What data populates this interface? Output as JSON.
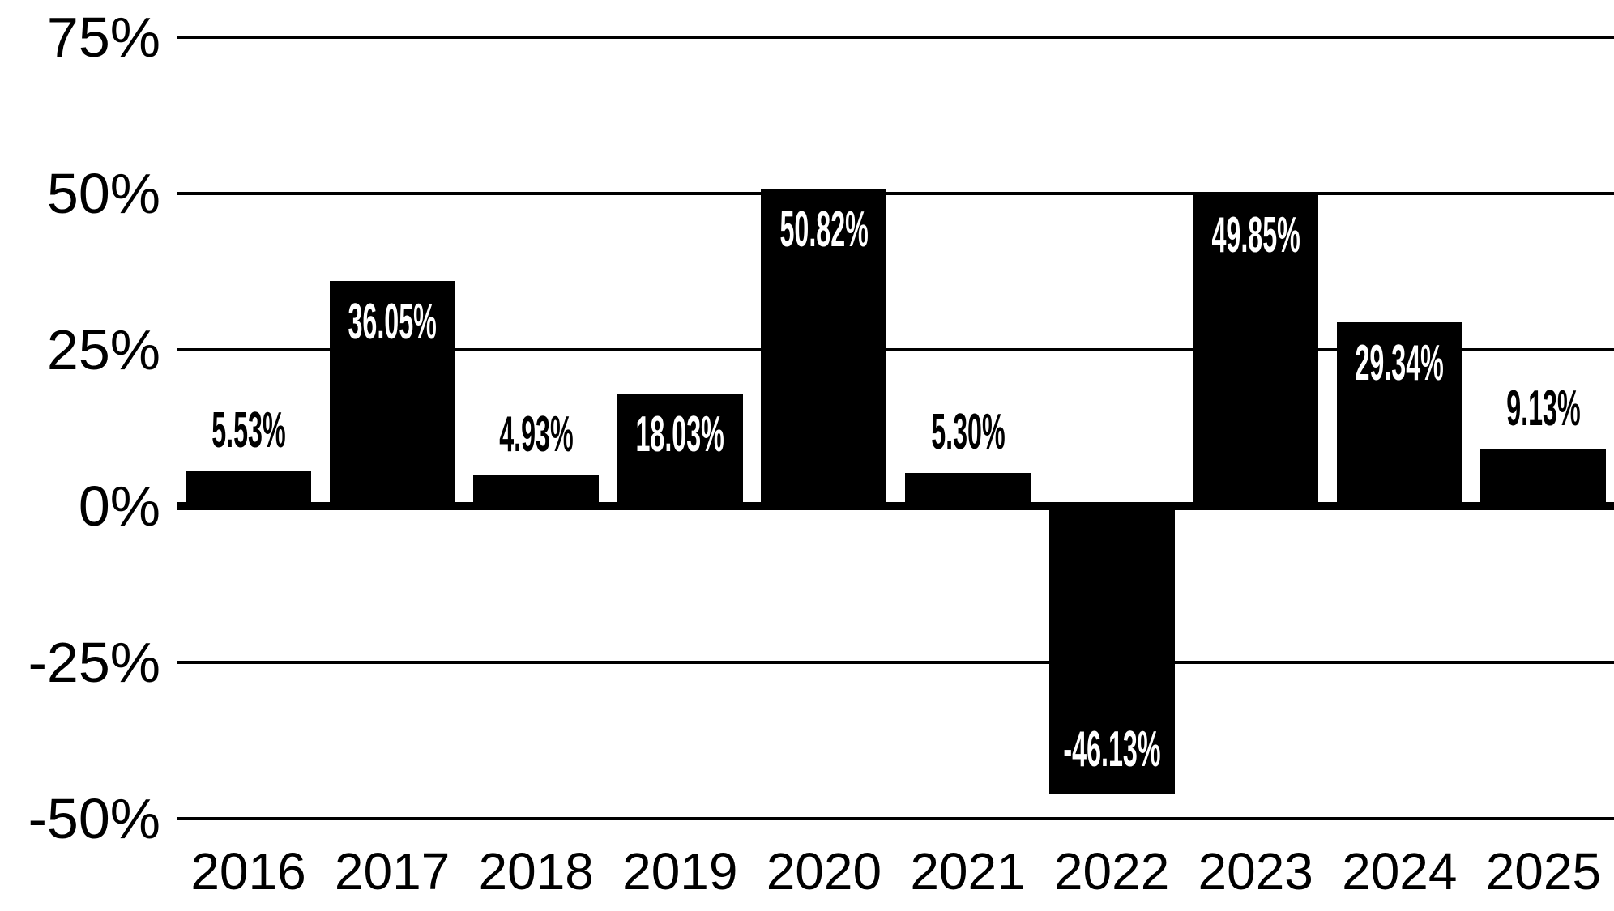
{
  "chart_data": {
    "type": "bar",
    "title": "",
    "xlabel": "",
    "ylabel": "",
    "categories": [
      "2016",
      "2017",
      "2018",
      "2019",
      "2020",
      "2021",
      "2022",
      "2023",
      "2024",
      "2025"
    ],
    "values": [
      5.53,
      36.05,
      4.93,
      18.03,
      50.82,
      5.3,
      -46.13,
      49.85,
      29.34,
      9.13
    ],
    "value_labels": [
      "5.53%",
      "36.05%",
      "4.93%",
      "18.03%",
      "50.82%",
      "5.30%",
      "-46.13%",
      "49.85%",
      "29.34%",
      "9.13%"
    ],
    "yticks": [
      75,
      50,
      25,
      0,
      -25,
      -50
    ],
    "ytick_labels": [
      "75%",
      "50%",
      "25%",
      "0%",
      "-25%",
      "-50%"
    ],
    "ylim": [
      -50,
      75
    ],
    "grid": "horizontal",
    "legend": "none",
    "bar_color": "#000000",
    "grid_color": "#000000",
    "axis_line_color": "#000000",
    "label_color_inside_bar": "#ffffff",
    "label_color_outside_bar": "#000000",
    "tick_label_color": "#000000",
    "background_color": "#ffffff"
  }
}
